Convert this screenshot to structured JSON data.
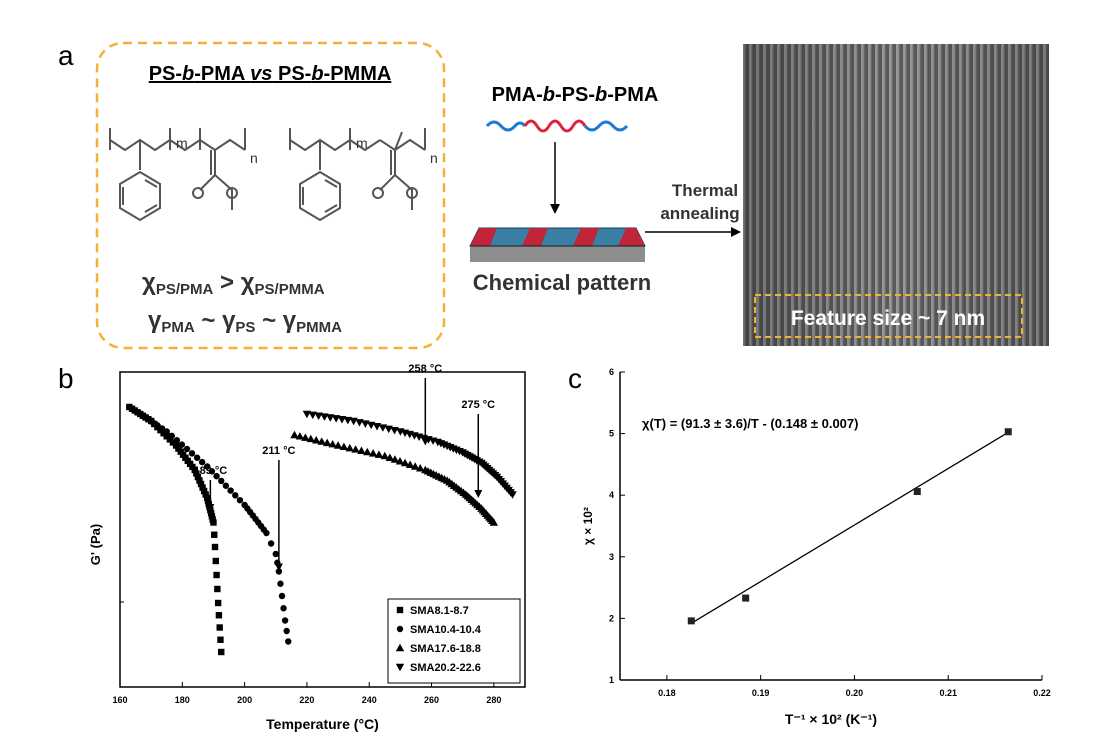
{
  "panel_a": {
    "label": "a",
    "box_title_parts": [
      "PS-",
      "b",
      "-PMA ",
      "vs",
      " PS-",
      "b",
      "-PMMA"
    ],
    "subscripts": {
      "m": "m",
      "n": "n"
    },
    "chi_line": {
      "chi": "χ",
      "sub1": "PS/PMA",
      "gt": " > ",
      "sub2": "PS/PMMA"
    },
    "gamma_line": {
      "gamma": "γ",
      "sub1": "PMA",
      "sim": " ~ ",
      "sub2": "PS",
      "sub3": "PMMA"
    },
    "polymer_title_parts": [
      "PMA-",
      "b",
      "-PS-",
      "b",
      "-PMA"
    ],
    "arrow_label_line1": "Thermal",
    "arrow_label_line2": "annealing",
    "chemical_pattern": "Chemical pattern",
    "feature_size": "Feature size ~ 7 nm",
    "colors": {
      "dashed_box": "#f2b233",
      "chain_red": "#e0213a",
      "chain_blue": "#1e78d6",
      "stripe_blue": "#2b7fae",
      "stripe_red": "#c0253a"
    }
  },
  "panel_b": {
    "label": "b"
  },
  "panel_c": {
    "label": "c"
  },
  "chart_data": [
    {
      "type": "scatter",
      "xlabel": "Temperature (°C)",
      "ylabel": "G' (Pa)",
      "xlim": [
        160,
        290
      ],
      "x_ticks": [
        "160",
        "180",
        "200",
        "220",
        "240",
        "260",
        "280"
      ],
      "annotations": [
        {
          "text": "189 °C",
          "x": 189
        },
        {
          "text": "211 °C",
          "x": 211
        },
        {
          "text": "258 °C",
          "x": 258
        },
        {
          "text": "275 °C",
          "x": 275
        }
      ],
      "legend_position": "bottom-right",
      "series": [
        {
          "name": "SMA8.1-8.7",
          "marker": "square",
          "x": [
            163,
            170,
            178,
            184,
            188,
            190,
            190.5,
            191,
            191.5,
            192,
            192.5
          ],
          "y": [
            8.0,
            7.6,
            6.9,
            6.2,
            5.4,
            4.7,
            4.0,
            3.2,
            2.4,
            1.7,
            1.0
          ]
        },
        {
          "name": "SMA10.4-10.4",
          "marker": "circle",
          "x": [
            163,
            175,
            188,
            200,
            207,
            210,
            211,
            212,
            213,
            214
          ],
          "y": [
            8.0,
            7.3,
            6.3,
            5.2,
            4.4,
            3.8,
            3.3,
            2.6,
            1.9,
            1.3
          ]
        },
        {
          "name": "SMA17.6-18.8",
          "marker": "triangle",
          "x": [
            216,
            230,
            245,
            258,
            265,
            271,
            276,
            280
          ],
          "y": [
            7.2,
            6.9,
            6.6,
            6.2,
            5.9,
            5.5,
            5.1,
            4.7
          ]
        },
        {
          "name": "SMA20.2-22.6",
          "marker": "triangle-down",
          "x": [
            220,
            235,
            250,
            262,
            270,
            276,
            281,
            286
          ],
          "y": [
            7.8,
            7.6,
            7.3,
            7.0,
            6.7,
            6.4,
            6.0,
            5.5
          ]
        }
      ]
    },
    {
      "type": "scatter",
      "xlabel": "T⁻¹ × 10² (K⁻¹)",
      "ylabel": "χ × 10²",
      "xlim": [
        0.175,
        0.22
      ],
      "ylim": [
        1,
        6
      ],
      "x_ticks": [
        "0.18",
        "0.19",
        "0.20",
        "0.21",
        "0.22"
      ],
      "y_ticks": [
        "1",
        "2",
        "3",
        "4",
        "5",
        "6"
      ],
      "equation": "χ(T) = (91.3 ± 3.6)/T - (0.148 ± 0.007)",
      "points": {
        "x": [
          0.1826,
          0.1884,
          0.2067,
          0.2164
        ],
        "y": [
          1.96,
          2.33,
          4.06,
          5.03
        ]
      },
      "fit": {
        "slope": 91.3,
        "intercept": -0.148,
        "x": [
          0.1826,
          0.2164
        ],
        "y": [
          1.92,
          5.02
        ]
      }
    }
  ]
}
